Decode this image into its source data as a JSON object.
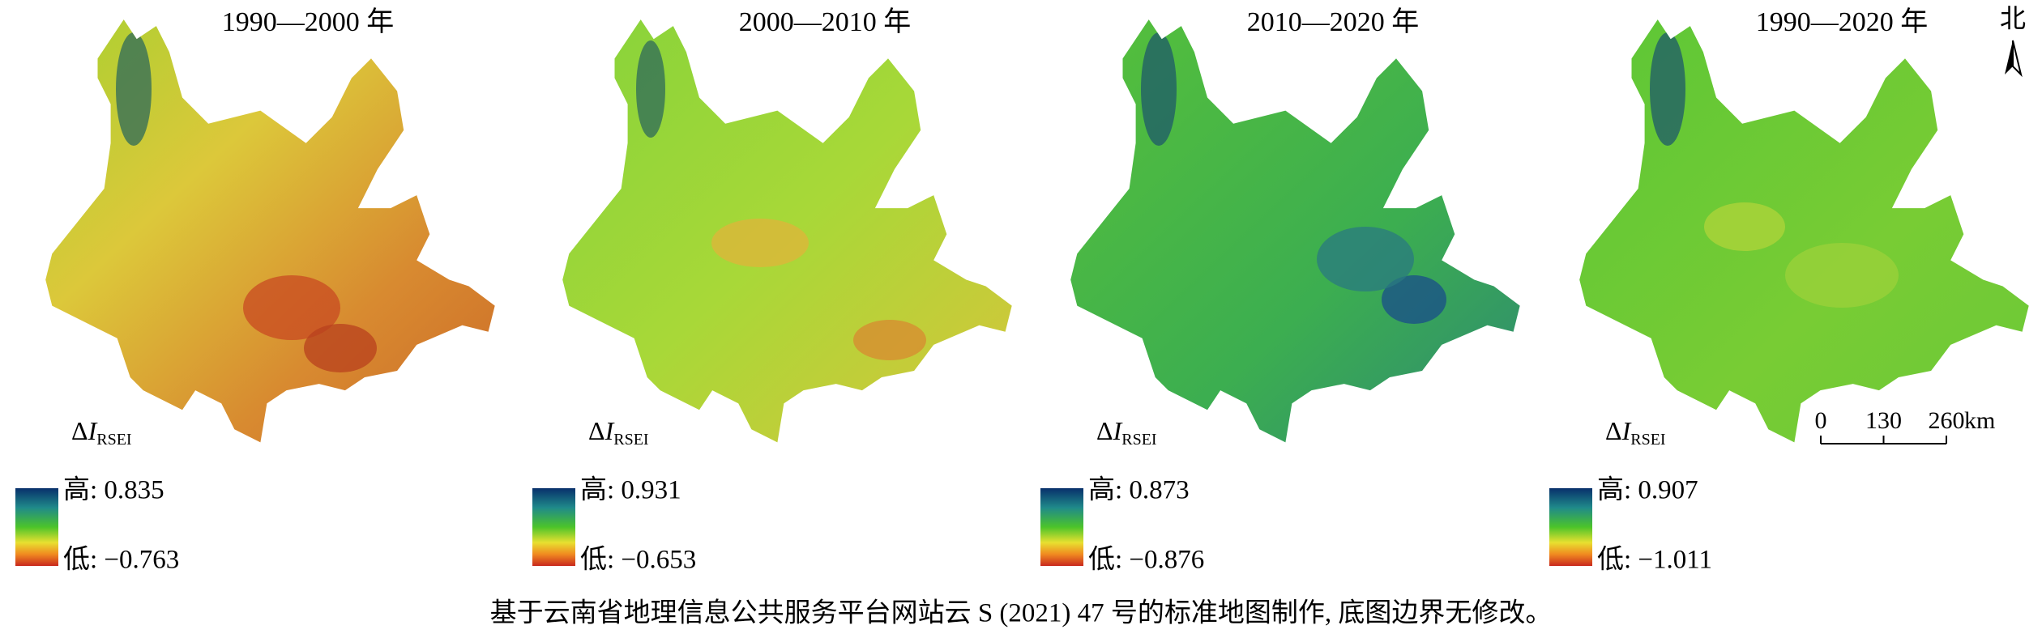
{
  "panels": [
    {
      "title": "1990—2000 年",
      "legend": {
        "delta": "Δ",
        "variable": "I",
        "subscript": "RSEI"
      },
      "high_label": "高: 0.835",
      "low_label": "低: −0.763"
    },
    {
      "title": "2000—2010 年",
      "legend": {
        "delta": "Δ",
        "variable": "I",
        "subscript": "RSEI"
      },
      "high_label": "高: 0.931",
      "low_label": "低: −0.653"
    },
    {
      "title": "2010—2020 年",
      "legend": {
        "delta": "Δ",
        "variable": "I",
        "subscript": "RSEI"
      },
      "high_label": "高: 0.873",
      "low_label": "低: −0.876"
    },
    {
      "title": "1990—2020 年",
      "legend": {
        "delta": "Δ",
        "variable": "I",
        "subscript": "RSEI"
      },
      "high_label": "高: 0.907",
      "low_label": "低: −1.011"
    }
  ],
  "north": "北",
  "scale_bar": {
    "ticks": [
      0,
      130,
      260
    ],
    "unit": "km"
  },
  "caption": "基于云南省地理信息公共服务平台网站云 S (2021) 47 号的标准地图制作, 底图边界无修改。"
}
